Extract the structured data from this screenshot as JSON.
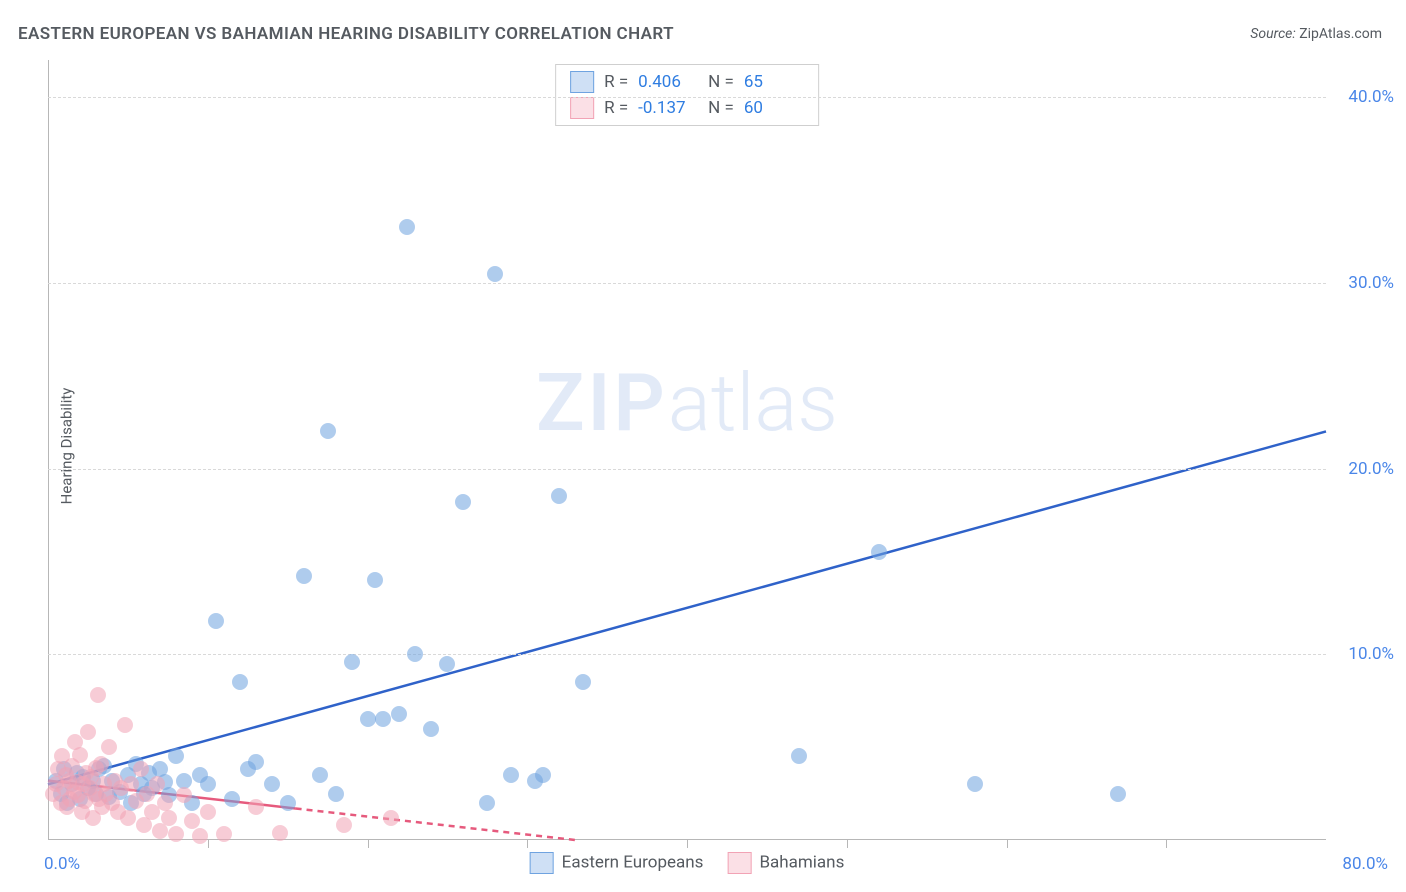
{
  "title": "EASTERN EUROPEAN VS BAHAMIAN HEARING DISABILITY CORRELATION CHART",
  "source_label": "Source:",
  "source_name": "ZipAtlas.com",
  "ylabel": "Hearing Disability",
  "watermark": {
    "zip": "ZIP",
    "atlas": "atlas"
  },
  "chart": {
    "type": "scatter",
    "background_color": "#ffffff",
    "grid_color": "#d9d9d9",
    "axis_color": "#b7b7b7",
    "text_color": "#555a60",
    "value_color": "#2f7de1",
    "xlim": [
      0,
      80
    ],
    "ylim": [
      0,
      42
    ],
    "y_ticks": [
      10,
      20,
      30,
      40
    ],
    "y_tick_labels": [
      "10.0%",
      "20.0%",
      "30.0%",
      "40.0%"
    ],
    "x_origin_label": "0.0%",
    "x_max_label": "80.0%",
    "x_ticks": [
      10,
      20,
      30,
      40,
      50,
      60,
      70
    ],
    "marker_radius": 8,
    "marker_fill_opacity": 0.3,
    "marker_stroke_opacity": 0.6,
    "line_width": 2.5,
    "series": [
      {
        "name": "Eastern Europeans",
        "color": "#6fa3e0",
        "line_color": "#2f62c9",
        "dash": "none",
        "r": 0.406,
        "n": 65,
        "regression": {
          "x0": 0,
          "y0": 3.0,
          "x1": 80,
          "y1": 22.0
        },
        "points": [
          [
            0.5,
            3.2
          ],
          [
            0.8,
            2.5
          ],
          [
            1.0,
            3.8
          ],
          [
            1.2,
            2.0
          ],
          [
            1.5,
            3.0
          ],
          [
            1.8,
            3.6
          ],
          [
            2.0,
            2.2
          ],
          [
            2.2,
            3.4
          ],
          [
            2.5,
            2.8
          ],
          [
            2.8,
            3.2
          ],
          [
            3.0,
            2.5
          ],
          [
            3.2,
            3.8
          ],
          [
            3.5,
            4.0
          ],
          [
            3.8,
            2.3
          ],
          [
            4.0,
            3.2
          ],
          [
            4.5,
            2.6
          ],
          [
            5.0,
            3.5
          ],
          [
            5.2,
            2.0
          ],
          [
            5.5,
            4.1
          ],
          [
            5.8,
            3.0
          ],
          [
            6.0,
            2.5
          ],
          [
            6.3,
            3.6
          ],
          [
            6.5,
            2.8
          ],
          [
            7.0,
            3.8
          ],
          [
            7.3,
            3.1
          ],
          [
            7.6,
            2.4
          ],
          [
            8.0,
            4.5
          ],
          [
            8.5,
            3.2
          ],
          [
            9.0,
            2.0
          ],
          [
            9.5,
            3.5
          ],
          [
            10.0,
            3.0
          ],
          [
            10.5,
            11.8
          ],
          [
            11.5,
            2.2
          ],
          [
            12.0,
            8.5
          ],
          [
            12.5,
            3.8
          ],
          [
            13.0,
            4.2
          ],
          [
            14.0,
            3.0
          ],
          [
            15.0,
            2.0
          ],
          [
            16.0,
            14.2
          ],
          [
            17.0,
            3.5
          ],
          [
            17.5,
            22.0
          ],
          [
            18.0,
            2.5
          ],
          [
            19.0,
            9.6
          ],
          [
            20.0,
            6.5
          ],
          [
            20.5,
            14.0
          ],
          [
            21.0,
            6.5
          ],
          [
            22.0,
            6.8
          ],
          [
            22.5,
            33.0
          ],
          [
            23.0,
            10.0
          ],
          [
            24.0,
            6.0
          ],
          [
            25.0,
            9.5
          ],
          [
            26.0,
            18.2
          ],
          [
            27.5,
            2.0
          ],
          [
            28.0,
            30.5
          ],
          [
            29.0,
            3.5
          ],
          [
            30.5,
            3.2
          ],
          [
            31.0,
            3.5
          ],
          [
            32.0,
            18.5
          ],
          [
            33.5,
            8.5
          ],
          [
            47.0,
            4.5
          ],
          [
            52.0,
            15.5
          ],
          [
            58.0,
            3.0
          ],
          [
            67.0,
            2.5
          ]
        ]
      },
      {
        "name": "Bahamians",
        "color": "#f2a3b5",
        "line_color": "#e65a7d",
        "dash": "6,5",
        "r": -0.137,
        "n": 60,
        "regression": {
          "x0": 0,
          "y0": 3.2,
          "x1": 33,
          "y1": 0.0
        },
        "points": [
          [
            0.3,
            2.5
          ],
          [
            0.5,
            3.0
          ],
          [
            0.6,
            3.8
          ],
          [
            0.8,
            2.0
          ],
          [
            0.9,
            4.5
          ],
          [
            1.0,
            2.8
          ],
          [
            1.1,
            3.5
          ],
          [
            1.2,
            1.8
          ],
          [
            1.3,
            3.2
          ],
          [
            1.4,
            2.2
          ],
          [
            1.5,
            4.0
          ],
          [
            1.6,
            2.6
          ],
          [
            1.7,
            5.3
          ],
          [
            1.8,
            3.1
          ],
          [
            1.9,
            2.4
          ],
          [
            2.0,
            4.6
          ],
          [
            2.1,
            1.5
          ],
          [
            2.2,
            3.0
          ],
          [
            2.3,
            2.1
          ],
          [
            2.4,
            3.6
          ],
          [
            2.5,
            5.8
          ],
          [
            2.6,
            2.8
          ],
          [
            2.7,
            3.4
          ],
          [
            2.8,
            1.2
          ],
          [
            2.9,
            2.5
          ],
          [
            3.0,
            3.9
          ],
          [
            3.1,
            7.8
          ],
          [
            3.2,
            2.2
          ],
          [
            3.3,
            4.1
          ],
          [
            3.4,
            1.8
          ],
          [
            3.5,
            3.0
          ],
          [
            3.6,
            2.5
          ],
          [
            3.8,
            5.0
          ],
          [
            4.0,
            2.0
          ],
          [
            4.2,
            3.2
          ],
          [
            4.4,
            1.5
          ],
          [
            4.6,
            2.8
          ],
          [
            4.8,
            6.2
          ],
          [
            5.0,
            1.2
          ],
          [
            5.2,
            3.0
          ],
          [
            5.5,
            2.1
          ],
          [
            5.8,
            3.8
          ],
          [
            6.0,
            0.8
          ],
          [
            6.2,
            2.5
          ],
          [
            6.5,
            1.5
          ],
          [
            6.8,
            3.0
          ],
          [
            7.0,
            0.5
          ],
          [
            7.3,
            2.0
          ],
          [
            7.6,
            1.2
          ],
          [
            8.0,
            0.3
          ],
          [
            8.5,
            2.4
          ],
          [
            9.0,
            1.0
          ],
          [
            9.5,
            0.2
          ],
          [
            10.0,
            1.5
          ],
          [
            11.0,
            0.3
          ],
          [
            13.0,
            1.8
          ],
          [
            14.5,
            0.4
          ],
          [
            18.5,
            0.8
          ],
          [
            21.5,
            1.2
          ]
        ]
      }
    ]
  },
  "legend_top": {
    "r_label": "R =",
    "n_label": "N ="
  },
  "legend_bottom": {
    "items": [
      "Eastern Europeans",
      "Bahamians"
    ]
  }
}
